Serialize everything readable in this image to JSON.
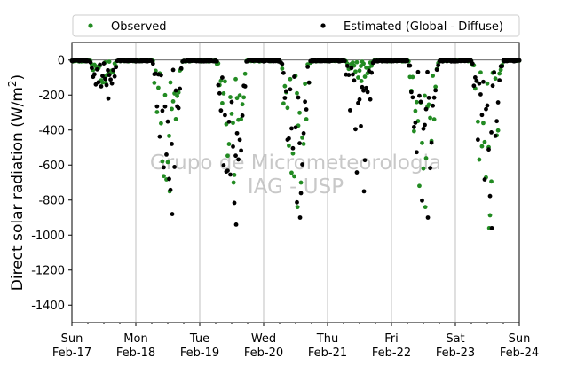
{
  "chart_data": {
    "type": "scatter",
    "ylabel": "Direct solar radiation (W/m²)",
    "ylabel_parts": {
      "main": "Direct solar radiation (W/m",
      "sup": "2",
      "close": ")"
    },
    "ylim": [
      -1500,
      100
    ],
    "yticks": [
      0,
      -200,
      -400,
      -600,
      -800,
      -1000,
      -1200,
      -1400
    ],
    "xlim": [
      "2020-02-17",
      "2020-02-24"
    ],
    "xticks": [
      {
        "day": "Sun",
        "date": "Feb-17"
      },
      {
        "day": "Mon",
        "date": "Feb-18"
      },
      {
        "day": "Tue",
        "date": "Feb-19"
      },
      {
        "day": "Wed",
        "date": "Feb-20"
      },
      {
        "day": "Thu",
        "date": "Feb-21"
      },
      {
        "day": "Fri",
        "date": "Feb-22"
      },
      {
        "day": "Sat",
        "date": "Feb-23"
      },
      {
        "day": "Sun",
        "date": "Feb-24"
      }
    ],
    "grid": "x-only",
    "legend_placement": "top, above plot",
    "watermark": [
      "Grupo de Micrometeorologia",
      "IAG - USP"
    ],
    "series": [
      {
        "name": "Observed",
        "color": "#228b22",
        "marker": "dot",
        "daily_minimum": [
          {
            "date": "Feb-17",
            "min": -130
          },
          {
            "date": "Feb-18",
            "min": -750
          },
          {
            "date": "Feb-19",
            "min": -700
          },
          {
            "date": "Feb-20",
            "min": -840
          },
          {
            "date": "Feb-21",
            "min": -120
          },
          {
            "date": "Feb-22",
            "min": -840
          },
          {
            "date": "Feb-23",
            "min": -960
          }
        ]
      },
      {
        "name": "Estimated (Global - Diffuse)",
        "color": "#000000",
        "marker": "dot",
        "daily_minimum": [
          {
            "date": "Feb-17",
            "min": -220
          },
          {
            "date": "Feb-18",
            "min": -880
          },
          {
            "date": "Feb-19",
            "min": -940
          },
          {
            "date": "Feb-20",
            "min": -900
          },
          {
            "date": "Feb-21",
            "min": -750
          },
          {
            "date": "Feb-22",
            "min": -900
          },
          {
            "date": "Feb-23",
            "min": -960
          }
        ]
      }
    ]
  }
}
